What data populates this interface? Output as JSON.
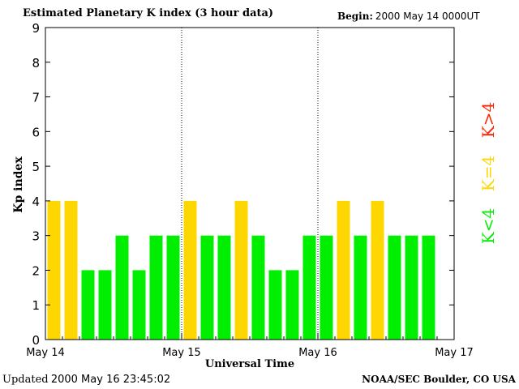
{
  "header": {
    "title": "Estimated Planetary K index (3 hour data)",
    "begin_label": "Begin:",
    "begin_value": "2000 May 14 0000UT"
  },
  "footer": {
    "updated_label": "Updated",
    "updated_value": "2000 May 16 23:45:02",
    "credit": "NOAA/SEC Boulder, CO USA"
  },
  "colors": {
    "low": "#00ee00",
    "equal": "#ffd700",
    "high": "#ff2200"
  },
  "chart_data": {
    "type": "bar",
    "xlabel": "Universal Time",
    "ylabel": "Kp index",
    "ylim": [
      0,
      9
    ],
    "yticks": [
      0,
      1,
      2,
      3,
      4,
      5,
      6,
      7,
      8,
      9
    ],
    "x_tick_labels": [
      "May 14",
      "May 15",
      "May 16",
      "May 17"
    ],
    "slots_per_day": 8,
    "values": [
      4,
      4,
      2,
      2,
      3,
      2,
      3,
      3,
      4,
      3,
      3,
      4,
      3,
      2,
      2,
      3,
      3,
      4,
      3,
      4,
      3,
      3,
      3
    ],
    "legend": [
      {
        "label": "K<4",
        "color_key": "low"
      },
      {
        "label": "K=4",
        "color_key": "equal"
      },
      {
        "label": "K>4",
        "color_key": "high"
      }
    ]
  }
}
